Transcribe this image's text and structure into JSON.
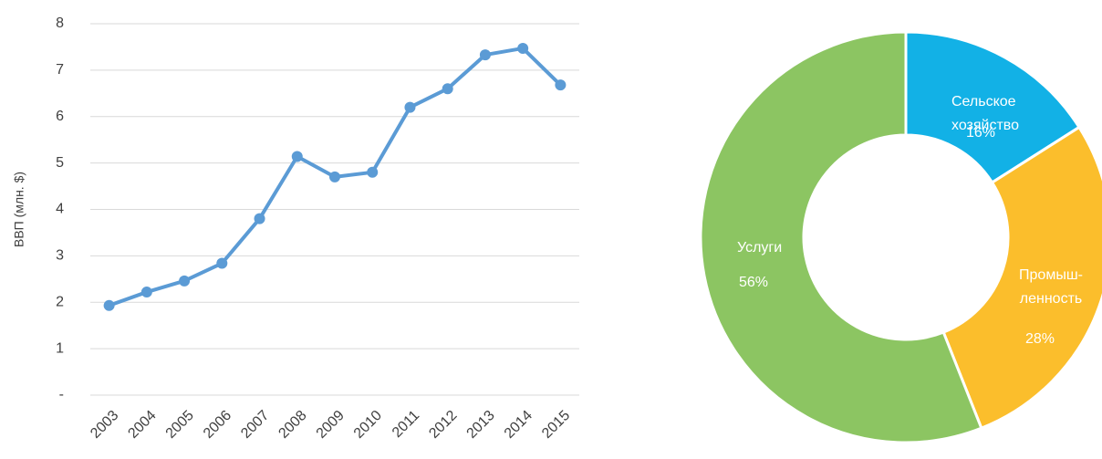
{
  "chart_data": [
    {
      "type": "line",
      "y_label": "ВВП (млн. $)",
      "categories": [
        "2003",
        "2004",
        "2005",
        "2006",
        "2007",
        "2008",
        "2009",
        "2010",
        "2011",
        "2012",
        "2013",
        "2014",
        "2015"
      ],
      "series": [
        {
          "color": "#5b9bd5",
          "values": [
            1.93,
            2.22,
            2.46,
            2.84,
            3.8,
            5.14,
            4.7,
            4.8,
            6.2,
            6.6,
            7.33,
            7.47,
            6.68
          ]
        }
      ],
      "ylim": [
        0,
        8
      ],
      "yticks": [
        {
          "value": 0,
          "label": "-"
        },
        1,
        2,
        3,
        4,
        5,
        6,
        7,
        8
      ],
      "grid": true
    },
    {
      "type": "donut",
      "categories": [
        [
          "Сельское",
          "хозяйство"
        ],
        [
          "Промыш-",
          "ленность"
        ],
        [
          "Услуги"
        ]
      ],
      "values": [
        16,
        28,
        56
      ],
      "value_labels": [
        "16%",
        "28%",
        "56%"
      ],
      "colors": [
        "#12b1e6",
        "#fbbe2c",
        "#8cc562"
      ]
    }
  ]
}
